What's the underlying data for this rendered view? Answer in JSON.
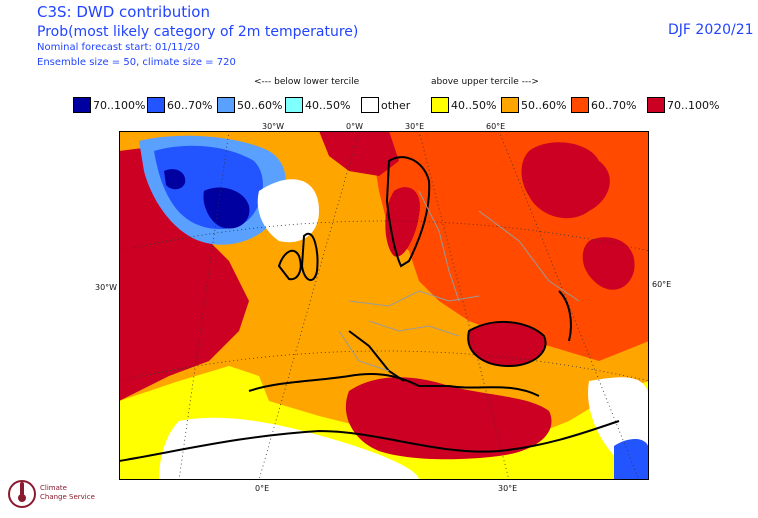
{
  "header": {
    "title": "C3S: DWD contribution",
    "subtitle": "Prob(most likely category of 2m temperature)",
    "forecast_start": "Nominal forecast start: 01/11/20",
    "ensemble": "Ensemble size = 50, climate size = 720",
    "season": "DJF 2020/21"
  },
  "legend": {
    "below_header": "<--- below lower tercile",
    "above_header": "above upper tercile --->",
    "items": [
      {
        "label": "70..100%",
        "color": "#0000a0"
      },
      {
        "label": "60..70%",
        "color": "#2255ff"
      },
      {
        "label": "50..60%",
        "color": "#5aa0ff"
      },
      {
        "label": "40..50%",
        "color": "#80ffff"
      },
      {
        "label": "other",
        "color": "#ffffff"
      },
      {
        "label": "40..50%",
        "color": "#ffff00"
      },
      {
        "label": "50..60%",
        "color": "#ffa500"
      },
      {
        "label": "60..70%",
        "color": "#ff4a00"
      },
      {
        "label": "70..100%",
        "color": "#cc0022"
      }
    ]
  },
  "axes": {
    "top": [
      "30°W",
      "0°W",
      "30°E",
      "60°E"
    ],
    "left": "30°W",
    "right": "60°E",
    "bottom": [
      "0°E",
      "30°E"
    ]
  },
  "logo": {
    "line1": "Climate",
    "line2": "Change Service"
  }
}
